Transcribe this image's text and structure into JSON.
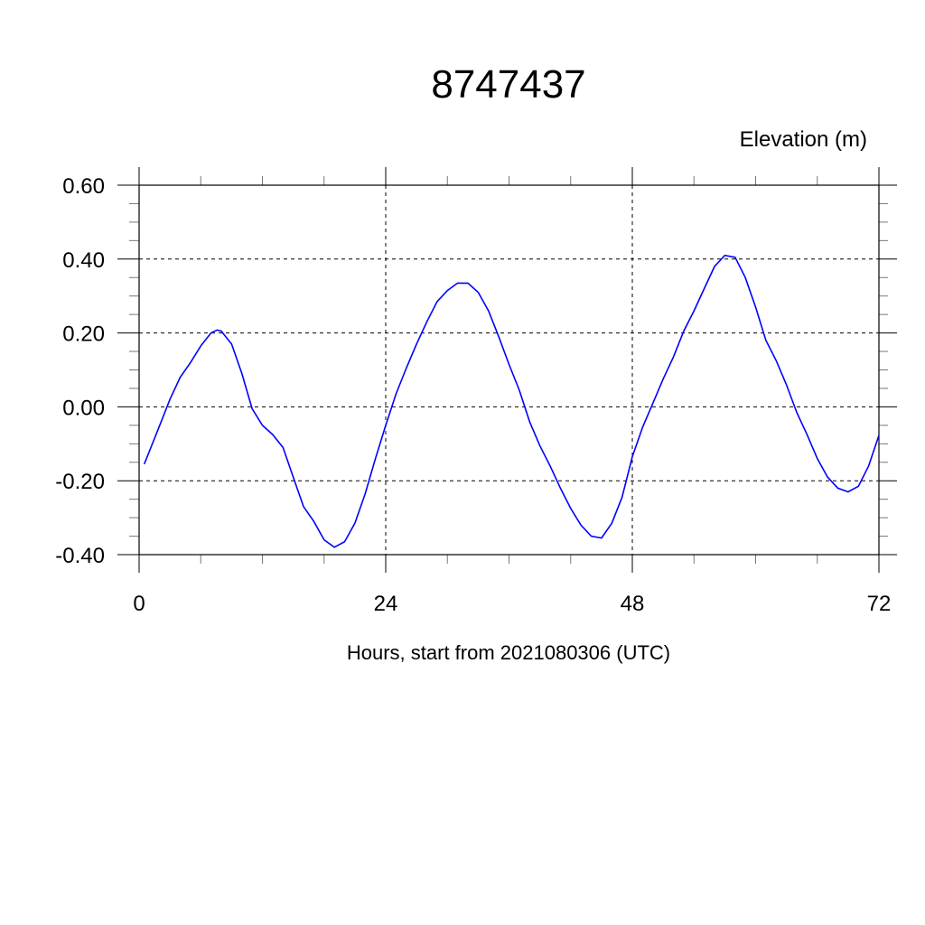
{
  "chart_data": {
    "type": "line",
    "title": "8747437",
    "ylabel": "Elevation (m)",
    "xlabel": "Hours, start from 2021080306 (UTC)",
    "xlim": [
      0,
      72
    ],
    "ylim": [
      -0.4,
      0.6
    ],
    "x_major_ticks": [
      0,
      24,
      48,
      72
    ],
    "x_tick_labels": [
      "0",
      "24",
      "48",
      "72"
    ],
    "x_minor_step": 6,
    "y_major_ticks": [
      0.6,
      0.4,
      0.2,
      0.0,
      -0.2,
      -0.4
    ],
    "y_tick_labels": [
      "0.60",
      "0.40",
      "0.20",
      "0.00",
      "-0.20",
      "-0.40"
    ],
    "y_minor_step": 0.05,
    "grid": "dashed at major ticks",
    "line_color": "#0000ff",
    "series": [
      {
        "x": [
          0.5,
          1,
          2,
          3,
          4,
          5,
          6,
          7,
          7.6,
          8,
          9,
          10,
          11,
          12,
          13,
          14,
          15,
          16,
          17,
          18,
          19,
          20,
          21,
          22,
          23,
          24,
          25,
          26,
          27,
          28,
          29,
          30,
          31,
          32,
          33,
          34,
          35,
          36,
          37,
          38,
          39,
          40,
          41,
          42,
          43,
          44,
          45,
          46,
          47,
          48,
          49,
          50,
          51,
          52,
          53,
          54,
          55,
          56,
          57,
          58,
          59,
          60,
          61,
          62,
          63,
          64,
          65,
          66,
          67,
          68,
          69,
          70,
          71,
          72
        ],
        "y": [
          -0.155,
          -0.12,
          -0.05,
          0.02,
          0.08,
          0.12,
          0.165,
          0.2,
          0.208,
          0.205,
          0.17,
          0.09,
          -0.005,
          -0.05,
          -0.075,
          -0.11,
          -0.19,
          -0.27,
          -0.31,
          -0.36,
          -0.38,
          -0.365,
          -0.315,
          -0.235,
          -0.14,
          -0.05,
          0.035,
          0.105,
          0.17,
          0.23,
          0.285,
          0.315,
          0.335,
          0.335,
          0.31,
          0.26,
          0.19,
          0.115,
          0.045,
          -0.04,
          -0.105,
          -0.16,
          -0.22,
          -0.275,
          -0.32,
          -0.35,
          -0.355,
          -0.315,
          -0.245,
          -0.135,
          -0.055,
          0.01,
          0.075,
          0.135,
          0.205,
          0.26,
          0.32,
          0.38,
          0.41,
          0.405,
          0.35,
          0.27,
          0.18,
          0.125,
          0.06,
          -0.015,
          -0.075,
          -0.14,
          -0.19,
          -0.22,
          -0.23,
          -0.215,
          -0.16,
          -0.077
        ]
      }
    ]
  }
}
